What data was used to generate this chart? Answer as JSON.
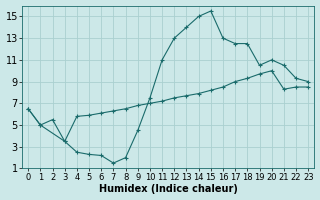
{
  "xlabel": "Humidex (Indice chaleur)",
  "bg_color": "#cce8e8",
  "line_color": "#1a6b6b",
  "grid_color": "#aad0d0",
  "line1_x": [
    0,
    1,
    2,
    3,
    4,
    5,
    6,
    7,
    8,
    9,
    10,
    11,
    12,
    13,
    14,
    15,
    16,
    17,
    18,
    19,
    20,
    21,
    22,
    23
  ],
  "line1_y": [
    6.5,
    5.0,
    5.5,
    3.5,
    2.5,
    2.3,
    2.2,
    1.5,
    2.0,
    4.5,
    7.5,
    11.0,
    13.0,
    14.0,
    15.0,
    15.5,
    13.0,
    12.5,
    12.5,
    10.5,
    11.0,
    10.5,
    9.3,
    9.0
  ],
  "line2_x": [
    0,
    1,
    3,
    4,
    5,
    6,
    7,
    8,
    9,
    10,
    11,
    12,
    13,
    14,
    15,
    16,
    17,
    18,
    19,
    20,
    21,
    22,
    23
  ],
  "line2_y": [
    6.5,
    5.0,
    3.5,
    5.8,
    5.9,
    6.1,
    6.3,
    6.5,
    6.8,
    7.0,
    7.2,
    7.5,
    7.7,
    7.9,
    8.2,
    8.5,
    9.0,
    9.3,
    9.7,
    10.0,
    8.3,
    8.5,
    8.5
  ],
  "xlim": [
    -0.5,
    23.5
  ],
  "ylim": [
    1,
    16
  ],
  "xticks": [
    0,
    1,
    2,
    3,
    4,
    5,
    6,
    7,
    8,
    9,
    10,
    11,
    12,
    13,
    14,
    15,
    16,
    17,
    18,
    19,
    20,
    21,
    22,
    23
  ],
  "yticks": [
    1,
    3,
    5,
    7,
    9,
    11,
    13,
    15
  ],
  "xlabel_fontsize": 7,
  "tick_fontsize": 6,
  "marker": "+"
}
